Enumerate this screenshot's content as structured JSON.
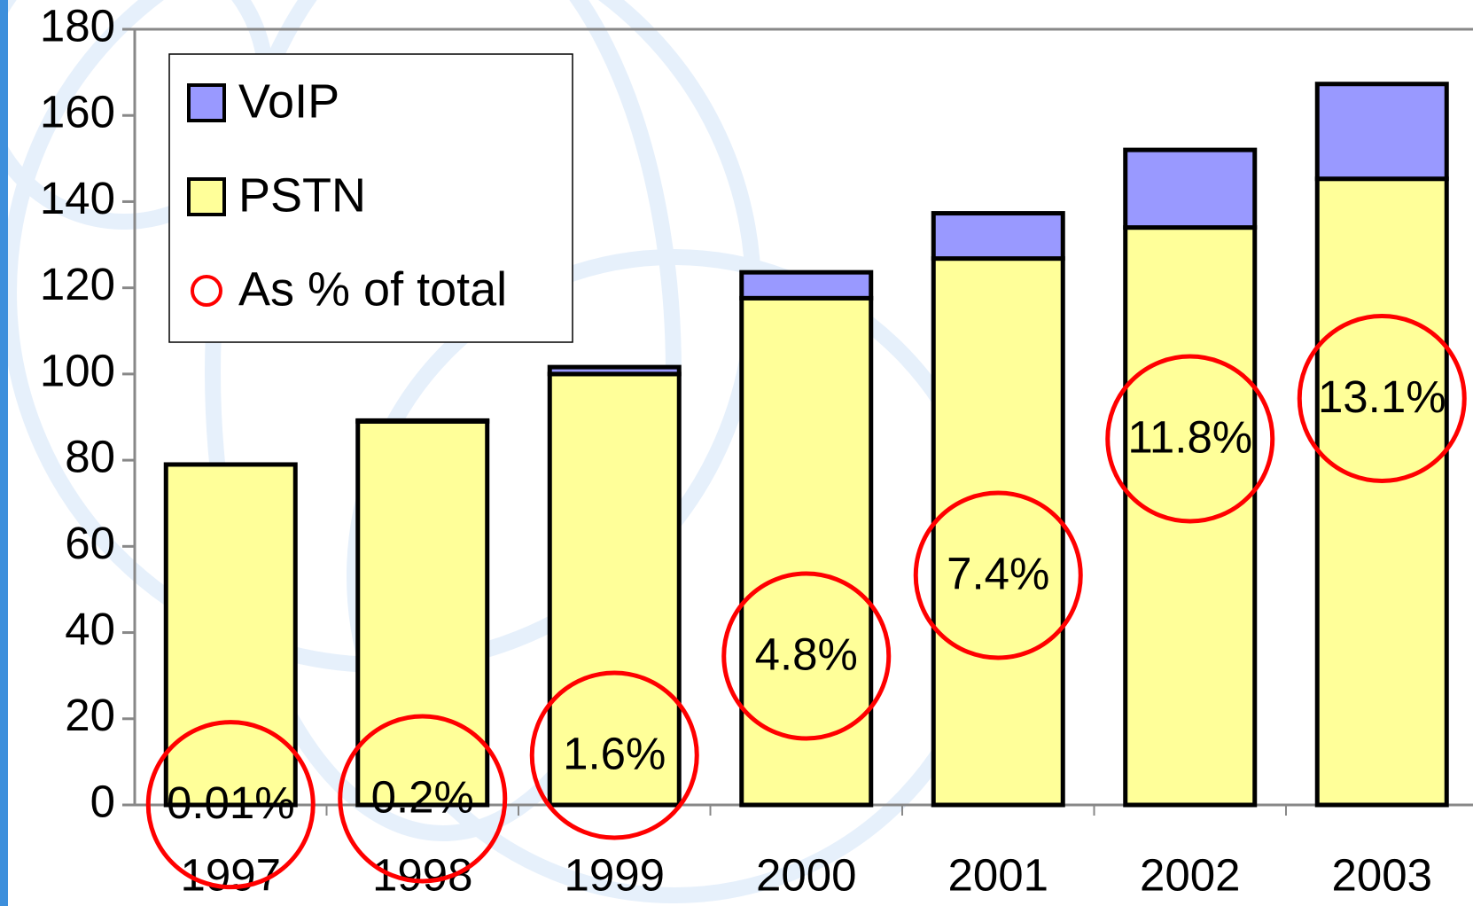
{
  "chart_data": {
    "type": "bar",
    "stacked": true,
    "categories": [
      "1997",
      "1998",
      "1999",
      "2000",
      "2001",
      "2002",
      "2003"
    ],
    "series": [
      {
        "name": "PSTN",
        "color": "#ffff99",
        "values": [
          79,
          89,
          100,
          117.6,
          126.8,
          134,
          145.3
        ]
      },
      {
        "name": "VoIP",
        "color": "#9999ff",
        "values": [
          0,
          0.2,
          1.6,
          6,
          10.5,
          18,
          22
        ]
      },
      {
        "name": "As % of total",
        "color": "#ff0000",
        "axis": "y2",
        "marker": "circle",
        "values": [
          0.01,
          0.2,
          1.6,
          4.8,
          7.4,
          11.8,
          13.1
        ],
        "value_labels": [
          "0.01%",
          "0.2%",
          "1.6%",
          "4.8%",
          "7.4%",
          "11.8%",
          "13.1%"
        ]
      }
    ],
    "ylim": [
      0,
      180
    ],
    "yticks": [
      0,
      20,
      40,
      60,
      80,
      100,
      120,
      140,
      160,
      180
    ],
    "y2lim": [
      0,
      25
    ],
    "legend": "top-left"
  }
}
